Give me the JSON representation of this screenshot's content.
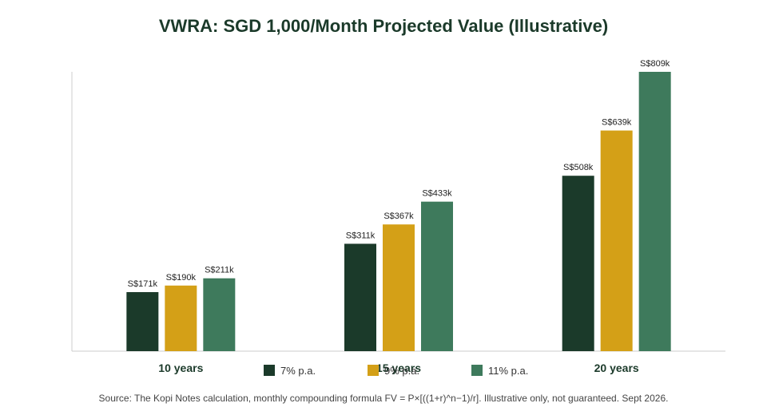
{
  "chart_data": {
    "type": "bar",
    "title": "VWRA: SGD 1,000/Month Projected Value (Illustrative)",
    "xlabel": "",
    "ylabel": "",
    "categories": [
      "10 years",
      "15 years",
      "20 years"
    ],
    "series": [
      {
        "name": "7% p.a.",
        "color": "#1b3a2a",
        "values": [
          171,
          311,
          508
        ],
        "labels": [
          "S$171k",
          "S$311k",
          "S$508k"
        ]
      },
      {
        "name": "9% p.a.",
        "color": "#d4a017",
        "values": [
          190,
          367,
          639
        ],
        "labels": [
          "S$190k",
          "S$367k",
          "S$639k"
        ]
      },
      {
        "name": "11% p.a.",
        "color": "#3e7a5c",
        "values": [
          211,
          433,
          809
        ],
        "labels": [
          "S$211k",
          "S$433k",
          "S$809k"
        ]
      }
    ],
    "ylim": [
      0,
      809
    ],
    "grid": false,
    "legend_position": "bottom",
    "source": "Source: The Kopi Notes calculation, monthly compounding formula FV = P×[((1+r)^n−1)/r]. Illustrative only, not guaranteed. Sept 2026."
  }
}
